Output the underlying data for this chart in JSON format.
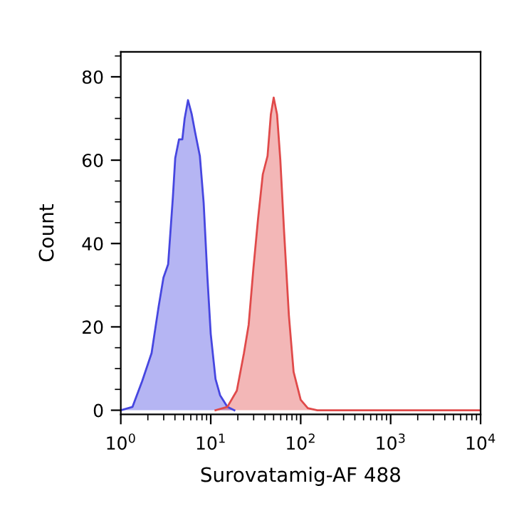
{
  "chart_data": {
    "type": "area",
    "xlabel": "Surovatamig-AF 488",
    "ylabel": "Count",
    "log": "x",
    "xlim": [
      1,
      10000
    ],
    "xticks": [
      {
        "value": 1,
        "label": "10$^{0}$"
      },
      {
        "value": 10,
        "label": "10$^{1}$"
      },
      {
        "value": 100,
        "label": "10$^{2}$"
      },
      {
        "value": 1000,
        "label": "10$^{3}$"
      },
      {
        "value": 10000,
        "label": "10$^{4}$"
      }
    ],
    "ylim": [
      -1,
      86
    ],
    "yticks": [
      0,
      20,
      40,
      60,
      80
    ],
    "grid": false,
    "series": [
      {
        "color": "#4646e0",
        "x": [
          1.0,
          1.35,
          1.73,
          2.2,
          2.64,
          2.98,
          3.36,
          3.79,
          4.03,
          4.44,
          4.83,
          5.13,
          5.59,
          6.15,
          6.7,
          7.57,
          8.34,
          9.19,
          10,
          11.3,
          12.7,
          15.3,
          18.3
        ],
        "values": [
          0,
          0.8,
          7,
          13.7,
          25,
          31.8,
          35,
          51,
          60.5,
          65,
          65,
          70,
          74.4,
          71,
          66.7,
          61,
          49.8,
          31.8,
          18.3,
          7.5,
          3.6,
          0.8,
          0
        ]
      },
      {
        "color": "#e04a4a",
        "x": [
          11.3,
          15.3,
          19.5,
          23.4,
          26.4,
          29.8,
          33.6,
          37.9,
          42.8,
          46.6,
          50.1,
          54.6,
          59.4,
          65.4,
          73.9,
          83.4,
          100,
          120,
          153,
          10000
        ],
        "values": [
          0,
          0.8,
          4.7,
          13.7,
          20.5,
          34,
          46,
          56.6,
          61,
          71,
          75,
          71,
          60,
          42.8,
          22.8,
          9.2,
          2.5,
          0.5,
          0,
          0
        ]
      }
    ]
  }
}
